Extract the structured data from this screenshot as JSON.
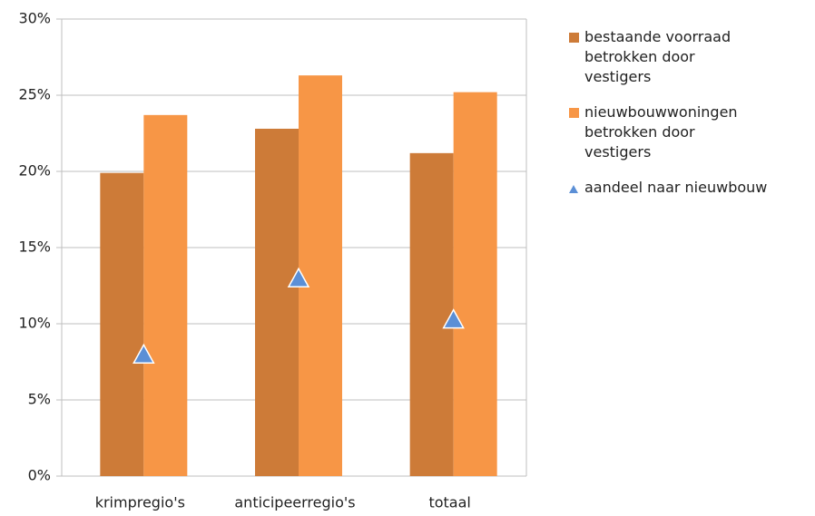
{
  "chart_data": {
    "type": "bar",
    "categories": [
      "krimpregio's",
      "anticipeerregio's",
      "totaal"
    ],
    "series": [
      {
        "name": "bestaande voorraad betrokken door vestigers",
        "type": "bar",
        "color": "#cd7b38",
        "values": [
          19.9,
          22.8,
          21.2
        ]
      },
      {
        "name": "nieuwbouwwoningen betrokken door vestigers",
        "type": "bar",
        "color": "#f79646",
        "values": [
          23.7,
          26.3,
          25.2
        ]
      },
      {
        "name": "aandeel naar nieuwbouw",
        "type": "scatter",
        "marker": "triangle",
        "color": "#5b8fd6",
        "values": [
          7.9,
          12.9,
          10.2
        ]
      }
    ],
    "ylim": [
      0,
      30
    ],
    "yticks": [
      {
        "value": 0,
        "label": "0%"
      },
      {
        "value": 5,
        "label": "5%"
      },
      {
        "value": 10,
        "label": "10%"
      },
      {
        "value": 15,
        "label": "15%"
      },
      {
        "value": 20,
        "label": "20%"
      },
      {
        "value": 25,
        "label": "25%"
      },
      {
        "value": 30,
        "label": "30%"
      }
    ],
    "grid": true,
    "legend": "right"
  }
}
